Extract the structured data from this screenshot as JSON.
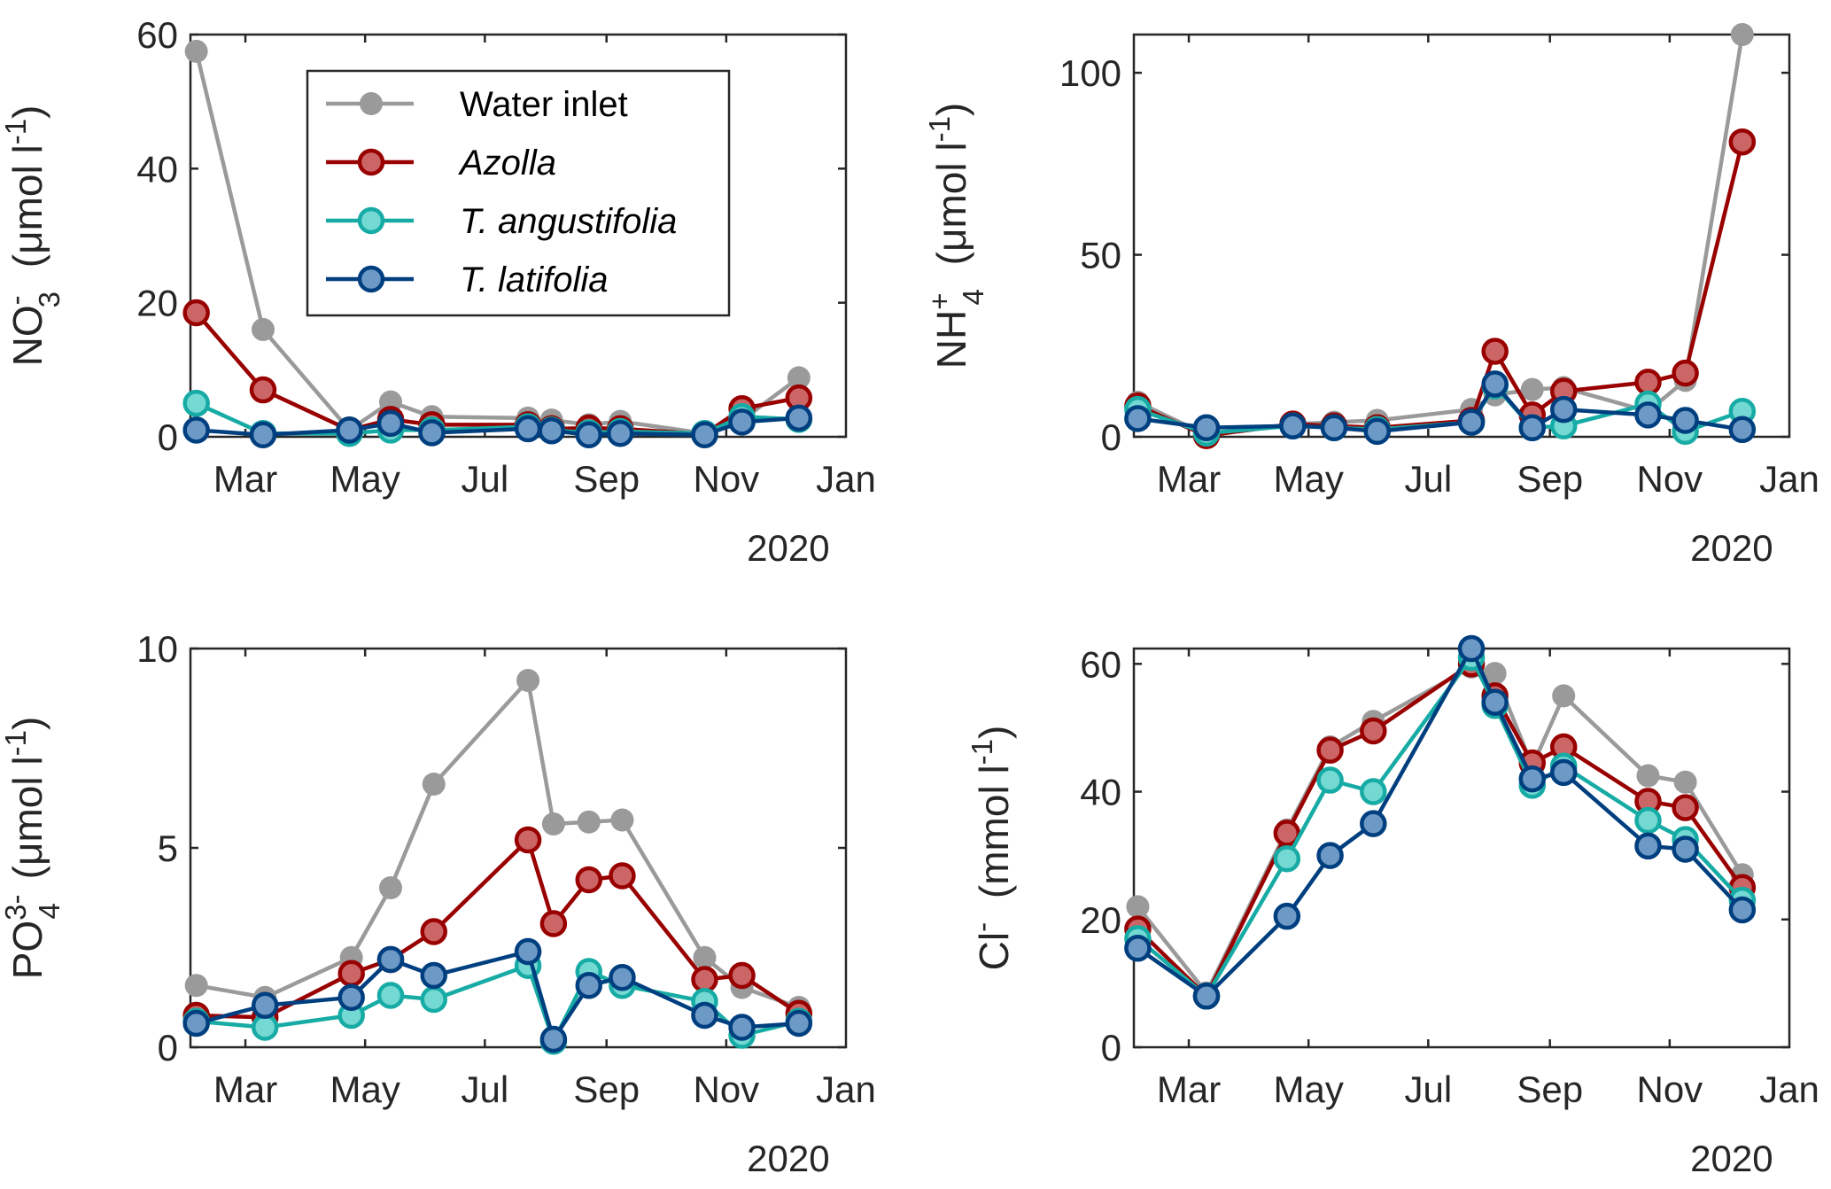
{
  "legend": {
    "entries": [
      {
        "label": "Water inlet",
        "italic": false,
        "line_color": "#9a9a9a",
        "fill_color": "#9a9a9a"
      },
      {
        "label": "Azolla",
        "italic": true,
        "line_color": "#990000",
        "fill_color": "#cc6666"
      },
      {
        "label": "T. angustifolia",
        "italic": true,
        "line_color": "#17aba5",
        "fill_color": "#74d8d3"
      },
      {
        "label": "T. latifolia",
        "italic": true,
        "line_color": "#003f7f",
        "fill_color": "#6d99c6"
      }
    ]
  },
  "x_axis": {
    "tick_labels": [
      "Mar",
      "May",
      "Jul",
      "Sep",
      "Nov",
      "Jan"
    ],
    "tick_day_of_year": [
      60,
      121,
      182,
      244,
      305,
      366
    ],
    "xlim_day_of_year": [
      32,
      366
    ],
    "year_label": "2020"
  },
  "chart_data": [
    {
      "type": "line",
      "id": "nitrate",
      "ylabel": {
        "main": "NO",
        "sub": "3",
        "sup": "-",
        "units": "(μmol l",
        "units_sup": "-1",
        "close": ")"
      },
      "ylim": [
        0,
        60
      ],
      "yticks": [
        0,
        20,
        40,
        60
      ],
      "grid": false,
      "legend_placement": "upper-center",
      "x_day_of_year": [
        35,
        69,
        113,
        134,
        155,
        204,
        216,
        235,
        251,
        294,
        313,
        342
      ],
      "series": [
        {
          "name": "Water inlet",
          "values": [
            57.5,
            16.0,
            1.0,
            5.2,
            3.0,
            2.8,
            2.5,
            1.8,
            2.3,
            0.5,
            2.5,
            8.8
          ]
        },
        {
          "name": "Azolla",
          "values": [
            18.5,
            7.0,
            1.0,
            2.6,
            1.8,
            1.8,
            1.2,
            1.3,
            1.2,
            0.4,
            4.2,
            5.8
          ]
        },
        {
          "name": "T. angustifolia",
          "values": [
            5.0,
            0.5,
            0.5,
            1.0,
            1.0,
            1.5,
            1.0,
            0.6,
            0.8,
            0.5,
            3.0,
            2.6
          ]
        },
        {
          "name": "T. latifolia",
          "values": [
            1.0,
            0.3,
            1.0,
            2.0,
            0.6,
            1.2,
            0.9,
            0.3,
            0.5,
            0.3,
            2.2,
            2.8
          ]
        }
      ]
    },
    {
      "type": "line",
      "id": "ammonium",
      "ylabel": {
        "main": "NH",
        "sub": "4",
        "sup": "+",
        "units": "(μmol l",
        "units_sup": "-1",
        "close": ")"
      },
      "ylim": [
        0,
        110.5
      ],
      "yticks": [
        0,
        50,
        100
      ],
      "grid": false,
      "x_day_of_year": [
        34,
        69,
        113,
        134,
        156,
        204,
        216,
        235,
        251,
        294,
        313,
        342
      ],
      "series": [
        {
          "name": "Water inlet",
          "values": [
            9.5,
            0.5,
            3.5,
            4.0,
            4.5,
            7.5,
            11.5,
            13.0,
            13.5,
            7.0,
            15.5,
            110.5
          ]
        },
        {
          "name": "Azolla",
          "values": [
            8.5,
            0.3,
            3.5,
            3.0,
            2.5,
            4.5,
            23.5,
            6.0,
            12.5,
            15.0,
            17.5,
            81.0
          ]
        },
        {
          "name": "T. angustifolia",
          "values": [
            7.5,
            1.0,
            3.0,
            2.5,
            2.0,
            4.0,
            14.0,
            2.5,
            3.0,
            9.0,
            1.5,
            7.0
          ]
        },
        {
          "name": "T. latifolia",
          "values": [
            5.0,
            2.5,
            3.0,
            2.5,
            1.5,
            4.0,
            14.5,
            2.5,
            7.5,
            6.0,
            4.5,
            2.0
          ]
        }
      ]
    },
    {
      "type": "line",
      "id": "phosphate",
      "ylabel": {
        "main": "PO",
        "sub": "4",
        "sup": "3-",
        "units": "(μmol l",
        "units_sup": "-1",
        "close": ")"
      },
      "ylim": [
        0,
        10
      ],
      "yticks": [
        0,
        5,
        10
      ],
      "grid": false,
      "x_day_of_year": [
        35,
        70,
        114,
        134,
        156,
        204,
        217,
        235,
        252,
        294,
        313,
        342
      ],
      "series": [
        {
          "name": "Water inlet",
          "values": [
            1.55,
            1.25,
            2.25,
            4.0,
            6.6,
            9.2,
            5.6,
            5.65,
            5.7,
            2.25,
            1.5,
            1.0
          ]
        },
        {
          "name": "Azolla",
          "values": [
            0.8,
            0.75,
            1.85,
            2.2,
            2.9,
            5.2,
            3.1,
            4.2,
            4.3,
            1.7,
            1.8,
            0.85
          ]
        },
        {
          "name": "T. angustifolia",
          "values": [
            0.65,
            0.5,
            0.8,
            1.3,
            1.2,
            2.05,
            0.15,
            1.9,
            1.55,
            1.15,
            0.3,
            0.65
          ]
        },
        {
          "name": "T. latifolia",
          "values": [
            0.6,
            1.05,
            1.25,
            2.2,
            1.8,
            2.4,
            0.2,
            1.55,
            1.75,
            0.8,
            0.5,
            0.6
          ]
        }
      ]
    },
    {
      "type": "line",
      "id": "chloride",
      "ylabel": {
        "main": "Cl",
        "sub": "",
        "sup": "-",
        "units": "(mmol l",
        "units_sup": "-1",
        "close": ")"
      },
      "ylim": [
        0,
        62.4
      ],
      "yticks": [
        0,
        20,
        40,
        60
      ],
      "grid": false,
      "x_day_of_year": [
        34,
        69,
        110,
        132,
        154,
        204,
        216,
        235,
        251,
        294,
        313,
        342
      ],
      "series": [
        {
          "name": "Water inlet",
          "values": [
            22.0,
            8.5,
            34.0,
            47.0,
            51.0,
            59.5,
            58.5,
            44.0,
            55.0,
            42.5,
            41.5,
            27.0
          ]
        },
        {
          "name": "Azolla",
          "values": [
            18.5,
            8.0,
            33.5,
            46.5,
            49.5,
            60.0,
            55.0,
            44.5,
            47.0,
            38.5,
            37.5,
            25.0
          ]
        },
        {
          "name": "T. angustifolia",
          "values": [
            17.0,
            8.0,
            29.5,
            41.8,
            40.0,
            61.0,
            53.5,
            41.0,
            44.0,
            35.5,
            32.5,
            23.0
          ]
        },
        {
          "name": "T. latifolia",
          "values": [
            15.5,
            8.0,
            20.5,
            30.0,
            35.0,
            62.4,
            54.0,
            42.0,
            43.0,
            31.5,
            31.0,
            21.5
          ]
        }
      ]
    }
  ]
}
